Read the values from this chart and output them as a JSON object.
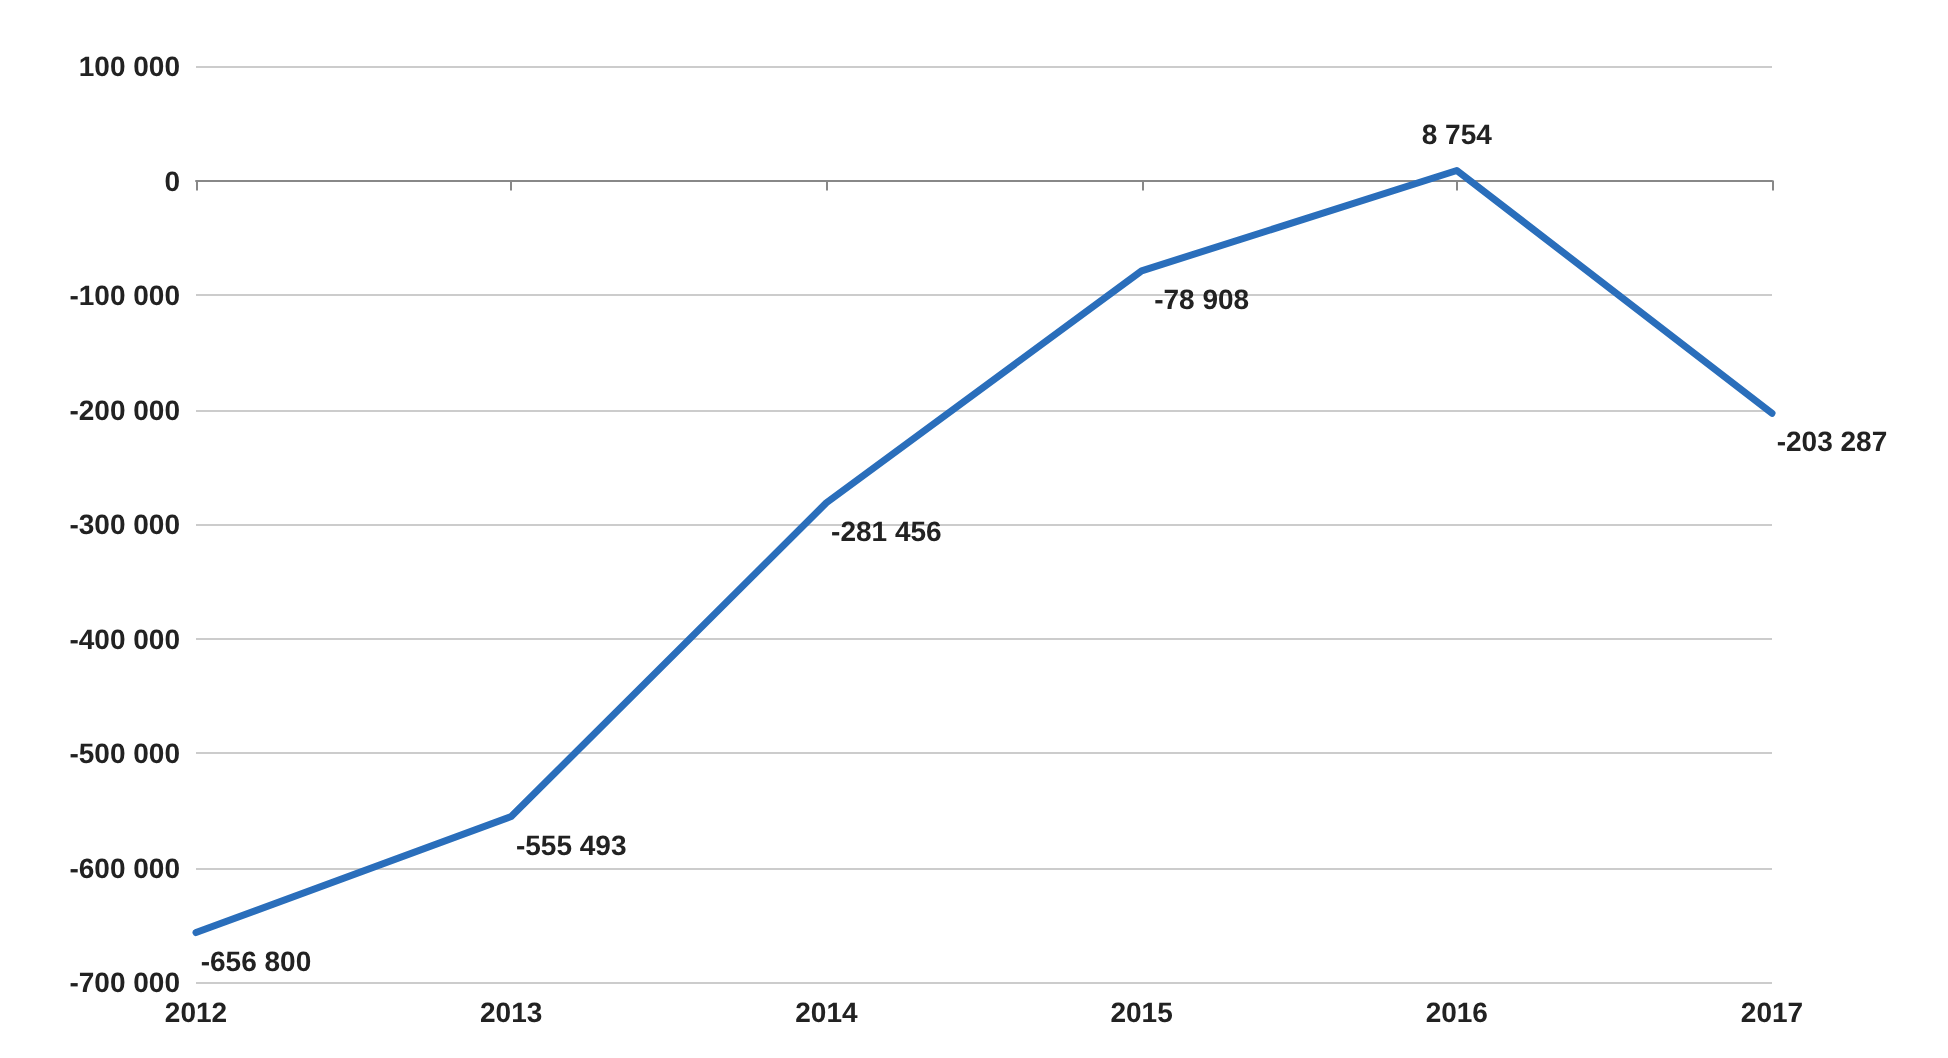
{
  "chart_data": {
    "type": "line",
    "categories": [
      "2012",
      "2013",
      "2014",
      "2015",
      "2016",
      "2017"
    ],
    "series": [
      {
        "color": "#2a6ebb",
        "values": [
          -656800,
          -555493,
          -281456,
          -78908,
          8754,
          -203287
        ],
        "value_labels": [
          "-656 800",
          "-555 493",
          "-281 456",
          "-78 908",
          "8 754",
          "-203 287"
        ]
      }
    ],
    "ylim": [
      -700000,
      100000
    ],
    "yticks": [
      {
        "value": -700000,
        "label": "-700 000"
      },
      {
        "value": -600000,
        "label": "-600 000"
      },
      {
        "value": -500000,
        "label": "-500 000"
      },
      {
        "value": -400000,
        "label": "-400 000"
      },
      {
        "value": -300000,
        "label": "-300 000"
      },
      {
        "value": -200000,
        "label": "-200 000"
      },
      {
        "value": -100000,
        "label": "-100 000"
      },
      {
        "value": 0,
        "label": "0"
      },
      {
        "value": 100000,
        "label": "100 000"
      }
    ],
    "grid": "y",
    "marker": "none",
    "line_style": "solid"
  }
}
